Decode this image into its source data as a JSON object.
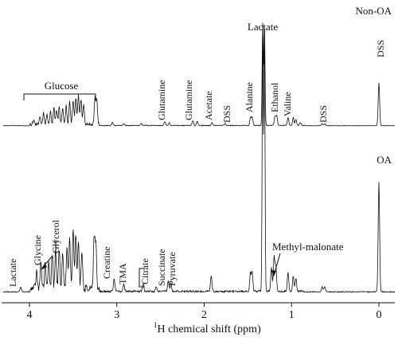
{
  "chart_data": {
    "type": "line",
    "xlabel_main": "H chemical shift (ppm)",
    "xlabel_sup": "1",
    "xlim": [
      4.2,
      -0.2
    ],
    "x_ticks": [
      "4",
      "3",
      "2",
      "1",
      "0"
    ],
    "series": [
      {
        "name": "Non-OA",
        "peaks": [
          {
            "x": 3.95,
            "y": 0.05
          },
          {
            "x": 3.88,
            "y": 0.08
          },
          {
            "x": 3.84,
            "y": 0.11
          },
          {
            "x": 3.8,
            "y": 0.1
          },
          {
            "x": 3.76,
            "y": 0.13
          },
          {
            "x": 3.72,
            "y": 0.16
          },
          {
            "x": 3.69,
            "y": 0.14
          },
          {
            "x": 3.66,
            "y": 0.17
          },
          {
            "x": 3.62,
            "y": 0.15
          },
          {
            "x": 3.58,
            "y": 0.18
          },
          {
            "x": 3.54,
            "y": 0.22
          },
          {
            "x": 3.5,
            "y": 0.24
          },
          {
            "x": 3.47,
            "y": 0.26
          },
          {
            "x": 3.44,
            "y": 0.28
          },
          {
            "x": 3.41,
            "y": 0.25
          },
          {
            "x": 3.38,
            "y": 0.2
          },
          {
            "x": 3.25,
            "y": 0.26
          },
          {
            "x": 3.23,
            "y": 0.24
          },
          {
            "x": 3.05,
            "y": 0.03
          },
          {
            "x": 2.92,
            "y": 0.02
          },
          {
            "x": 2.72,
            "y": 0.02
          },
          {
            "x": 2.45,
            "y": 0.04
          },
          {
            "x": 2.4,
            "y": 0.03
          },
          {
            "x": 2.13,
            "y": 0.05
          },
          {
            "x": 2.08,
            "y": 0.04
          },
          {
            "x": 1.91,
            "y": 0.03
          },
          {
            "x": 1.76,
            "y": 0.02
          },
          {
            "x": 1.47,
            "y": 0.08
          },
          {
            "x": 1.45,
            "y": 0.08
          },
          {
            "x": 1.33,
            "y": 1.0
          },
          {
            "x": 1.31,
            "y": 1.0
          },
          {
            "x": 1.19,
            "y": 0.09
          },
          {
            "x": 1.17,
            "y": 0.1
          },
          {
            "x": 1.04,
            "y": 0.08
          },
          {
            "x": 0.98,
            "y": 0.08
          },
          {
            "x": 0.95,
            "y": 0.06
          },
          {
            "x": 0.9,
            "y": 0.03
          },
          {
            "x": 0.65,
            "y": 0.02
          },
          {
            "x": 0.62,
            "y": 0.02
          },
          {
            "x": 0.0,
            "y": 0.42
          }
        ]
      },
      {
        "name": "OA",
        "peaks": [
          {
            "x": 4.1,
            "y": 0.02
          },
          {
            "x": 3.92,
            "y": 0.06
          },
          {
            "x": 3.87,
            "y": 0.09
          },
          {
            "x": 3.82,
            "y": 0.11
          },
          {
            "x": 3.78,
            "y": 0.1
          },
          {
            "x": 3.74,
            "y": 0.13
          },
          {
            "x": 3.7,
            "y": 0.15
          },
          {
            "x": 3.66,
            "y": 0.16
          },
          {
            "x": 3.62,
            "y": 0.14
          },
          {
            "x": 3.57,
            "y": 0.17
          },
          {
            "x": 3.54,
            "y": 0.2
          },
          {
            "x": 3.5,
            "y": 0.22
          },
          {
            "x": 3.47,
            "y": 0.21
          },
          {
            "x": 3.44,
            "y": 0.19
          },
          {
            "x": 3.4,
            "y": 0.14
          },
          {
            "x": 3.26,
            "y": 0.2
          },
          {
            "x": 3.24,
            "y": 0.18
          },
          {
            "x": 3.03,
            "y": 0.05
          },
          {
            "x": 2.92,
            "y": 0.03
          },
          {
            "x": 2.7,
            "y": 0.03
          },
          {
            "x": 2.55,
            "y": 0.02
          },
          {
            "x": 2.41,
            "y": 0.04
          },
          {
            "x": 2.38,
            "y": 0.03
          },
          {
            "x": 1.92,
            "y": 0.06
          },
          {
            "x": 1.47,
            "y": 0.07
          },
          {
            "x": 1.45,
            "y": 0.07
          },
          {
            "x": 1.33,
            "y": 1.0
          },
          {
            "x": 1.31,
            "y": 1.0
          },
          {
            "x": 1.23,
            "y": 0.09
          },
          {
            "x": 1.2,
            "y": 0.13
          },
          {
            "x": 1.18,
            "y": 0.1
          },
          {
            "x": 1.04,
            "y": 0.07
          },
          {
            "x": 0.98,
            "y": 0.06
          },
          {
            "x": 0.95,
            "y": 0.05
          },
          {
            "x": 0.65,
            "y": 0.02
          },
          {
            "x": 0.62,
            "y": 0.02
          },
          {
            "x": 0.0,
            "y": 0.42
          }
        ]
      }
    ],
    "annotations": {
      "top": [
        {
          "text": "Glutamine",
          "x": 2.45
        },
        {
          "text": "Glutamine",
          "x": 2.13
        },
        {
          "text": "Acetate",
          "x": 1.92
        },
        {
          "text": "DSS",
          "x": 1.76
        },
        {
          "text": "Alanine",
          "x": 1.47
        },
        {
          "text": "Ethanol",
          "x": 1.18
        },
        {
          "text": "Valine",
          "x": 1.0
        },
        {
          "text": "DSS",
          "x": 0.63
        }
      ],
      "top_horizontal": [
        {
          "text": "Lactate",
          "x": 1.32
        },
        {
          "text": "DSS",
          "x": 0.0
        },
        {
          "text": "Glucose",
          "x": 3.68
        }
      ],
      "bottom": [
        {
          "text": "Lactate",
          "x": 4.1
        },
        {
          "text": "Glycine",
          "x": 3.56
        },
        {
          "text": "Glycerol",
          "x": 3.42
        },
        {
          "text": "Creatine",
          "x": 3.03
        },
        {
          "text": "TMA",
          "x": 2.9
        },
        {
          "text": "Citrate",
          "x": 2.62
        },
        {
          "text": "Succinate",
          "x": 2.41
        },
        {
          "text": "Pyruvate",
          "x": 2.37
        }
      ],
      "bottom_horizontal": [
        {
          "text": "Methyl-malonate",
          "x": 0.95
        }
      ]
    }
  }
}
